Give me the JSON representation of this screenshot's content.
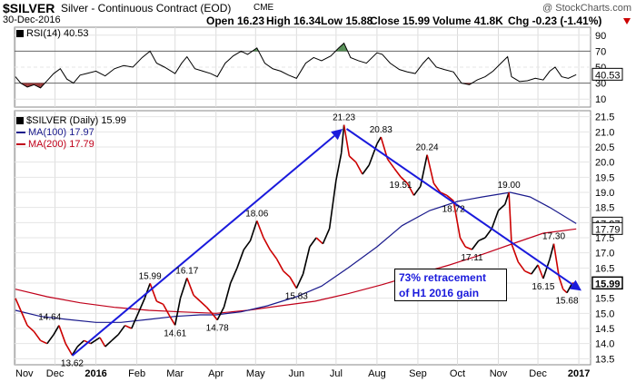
{
  "header": {
    "symbol": "$SILVER",
    "name": "Silver - Continuous Contract (EOD)",
    "exchange": "CME",
    "watermark": "@ StockCharts.com",
    "date": "30-Dec-2016",
    "open": "Open 16.23",
    "high": "High 16.34",
    "low": "Low 15.88",
    "close": "Close 15.99",
    "volume": "Volume 41.8K",
    "chg": "Chg -0.23 (-1.41%)",
    "chg_icon": "arrow-down-icon"
  },
  "colors": {
    "price": "#000000",
    "price_down": "#cc0000",
    "ma100": "#1a1a8c",
    "ma200": "#c0001a",
    "rsi_fill_overbought": "#3a7d3a",
    "rsi_fill_oversold": "#8b1a1a",
    "trend_arrow": "#1a1adc",
    "annotation_text": "#1a1adc"
  },
  "rsi_panel": {
    "label": "RSI(14) 40.53",
    "current_label": "40.53",
    "y_ticks": [
      "90",
      "70",
      "50",
      "30",
      "10"
    ]
  },
  "price_panel": {
    "legend": [
      {
        "label": "$SILVER (Daily) 15.99",
        "color": "#000000"
      },
      {
        "label": "MA(100) 17.97",
        "color": "#1a1a8c"
      },
      {
        "label": "MA(200) 17.79",
        "color": "#c0001a"
      }
    ],
    "y_ticks": [
      "21.5",
      "21.0",
      "20.5",
      "20.0",
      "19.5",
      "19.0",
      "18.5",
      "18.0",
      "17.5",
      "17.0",
      "16.5",
      "16.0",
      "15.5",
      "15.0",
      "14.5",
      "14.0",
      "13.5"
    ],
    "price_tags": [
      {
        "label": "17.97",
        "value": 17.97,
        "style": "outline"
      },
      {
        "label": "17.79",
        "value": 17.79,
        "style": "outline"
      },
      {
        "label": "15.99",
        "value": 15.99,
        "style": "filled"
      }
    ],
    "annotation": {
      "line1": "73% retracement",
      "line2": "of H1 2016 gain"
    }
  },
  "chart_data": {
    "type": "line",
    "x_labels": [
      "Nov",
      "Dec",
      "2016",
      "Feb",
      "Mar",
      "Apr",
      "May",
      "Jun",
      "Jul",
      "Aug",
      "Sep",
      "Oct",
      "Nov",
      "Dec",
      "2017"
    ],
    "ylim": [
      13.3,
      21.7
    ],
    "grid": true,
    "legend_position": "top-left",
    "series": [
      {
        "name": "$SILVER (Daily)",
        "points": [
          [
            "2015-11-01",
            15.5
          ],
          [
            "2015-11-05",
            15.1
          ],
          [
            "2015-11-10",
            14.6
          ],
          [
            "2015-11-15",
            14.4
          ],
          [
            "2015-11-20",
            14.1
          ],
          [
            "2015-11-25",
            14.0
          ],
          [
            "2015-11-30",
            14.3
          ],
          [
            "2015-12-04",
            14.6
          ],
          [
            "2015-12-09",
            14.0
          ],
          [
            "2015-12-14",
            13.62
          ],
          [
            "2015-12-18",
            13.9
          ],
          [
            "2015-12-23",
            14.1
          ],
          [
            "2015-12-28",
            14.0
          ],
          [
            "2016-01-04",
            14.2
          ],
          [
            "2016-01-08",
            13.9
          ],
          [
            "2016-01-13",
            14.1
          ],
          [
            "2016-01-18",
            14.3
          ],
          [
            "2016-01-23",
            14.6
          ],
          [
            "2016-01-28",
            14.5
          ],
          [
            "2016-02-02",
            15.0
          ],
          [
            "2016-02-07",
            15.5
          ],
          [
            "2016-02-11",
            15.99
          ],
          [
            "2016-02-16",
            15.4
          ],
          [
            "2016-02-21",
            15.3
          ],
          [
            "2016-02-26",
            14.9
          ],
          [
            "2016-03-01",
            14.61
          ],
          [
            "2016-03-05",
            15.5
          ],
          [
            "2016-03-10",
            16.17
          ],
          [
            "2016-03-15",
            15.6
          ],
          [
            "2016-03-20",
            15.4
          ],
          [
            "2016-03-25",
            15.2
          ],
          [
            "2016-03-29",
            15.0
          ],
          [
            "2016-04-02",
            14.78
          ],
          [
            "2016-04-07",
            15.2
          ],
          [
            "2016-04-12",
            16.0
          ],
          [
            "2016-04-17",
            16.5
          ],
          [
            "2016-04-22",
            17.1
          ],
          [
            "2016-04-27",
            17.4
          ],
          [
            "2016-05-02",
            18.06
          ],
          [
            "2016-05-07",
            17.5
          ],
          [
            "2016-05-12",
            17.1
          ],
          [
            "2016-05-17",
            16.8
          ],
          [
            "2016-05-22",
            16.4
          ],
          [
            "2016-05-27",
            16.2
          ],
          [
            "2016-06-01",
            15.83
          ],
          [
            "2016-06-06",
            16.3
          ],
          [
            "2016-06-11",
            17.2
          ],
          [
            "2016-06-16",
            17.5
          ],
          [
            "2016-06-21",
            17.3
          ],
          [
            "2016-06-26",
            17.8
          ],
          [
            "2016-07-01",
            19.4
          ],
          [
            "2016-07-05",
            20.3
          ],
          [
            "2016-07-07",
            21.23
          ],
          [
            "2016-07-11",
            20.2
          ],
          [
            "2016-07-16",
            20.0
          ],
          [
            "2016-07-21",
            19.6
          ],
          [
            "2016-07-26",
            19.9
          ],
          [
            "2016-08-01",
            20.6
          ],
          [
            "2016-08-04",
            20.83
          ],
          [
            "2016-08-09",
            20.1
          ],
          [
            "2016-08-14",
            19.8
          ],
          [
            "2016-08-19",
            19.51
          ],
          [
            "2016-08-24",
            19.3
          ],
          [
            "2016-08-29",
            18.9
          ],
          [
            "2016-09-03",
            19.2
          ],
          [
            "2016-09-08",
            20.24
          ],
          [
            "2016-09-13",
            19.3
          ],
          [
            "2016-09-18",
            19.0
          ],
          [
            "2016-09-23",
            18.9
          ],
          [
            "2016-09-28",
            18.72
          ],
          [
            "2016-10-03",
            17.5
          ],
          [
            "2016-10-07",
            17.2
          ],
          [
            "2016-10-12",
            17.11
          ],
          [
            "2016-10-17",
            17.4
          ],
          [
            "2016-10-22",
            17.5
          ],
          [
            "2016-10-27",
            17.8
          ],
          [
            "2016-11-01",
            18.4
          ],
          [
            "2016-11-06",
            18.6
          ],
          [
            "2016-11-09",
            19.0
          ],
          [
            "2016-11-11",
            17.3
          ],
          [
            "2016-11-16",
            16.7
          ],
          [
            "2016-11-21",
            16.4
          ],
          [
            "2016-11-26",
            16.3
          ],
          [
            "2016-12-01",
            16.6
          ],
          [
            "2016-12-05",
            16.15
          ],
          [
            "2016-12-10",
            16.8
          ],
          [
            "2016-12-13",
            17.3
          ],
          [
            "2016-12-17",
            16.2
          ],
          [
            "2016-12-20",
            15.8
          ],
          [
            "2016-12-23",
            15.68
          ],
          [
            "2016-12-27",
            16.0
          ],
          [
            "2016-12-30",
            15.99
          ]
        ]
      },
      {
        "name": "MA(100)",
        "points": [
          [
            "2015-11-01",
            15.1
          ],
          [
            "2015-11-20",
            14.9
          ],
          [
            "2015-12-10",
            14.8
          ],
          [
            "2016-01-01",
            14.7
          ],
          [
            "2016-01-20",
            14.7
          ],
          [
            "2016-02-10",
            14.8
          ],
          [
            "2016-03-01",
            14.9
          ],
          [
            "2016-03-20",
            14.95
          ],
          [
            "2016-04-01",
            14.95
          ],
          [
            "2016-04-20",
            15.05
          ],
          [
            "2016-05-10",
            15.25
          ],
          [
            "2016-06-01",
            15.55
          ],
          [
            "2016-06-20",
            15.9
          ],
          [
            "2016-07-10",
            16.5
          ],
          [
            "2016-08-01",
            17.2
          ],
          [
            "2016-08-20",
            17.9
          ],
          [
            "2016-09-10",
            18.4
          ],
          [
            "2016-10-01",
            18.7
          ],
          [
            "2016-10-20",
            18.85
          ],
          [
            "2016-11-10",
            19.0
          ],
          [
            "2016-11-25",
            18.85
          ],
          [
            "2016-12-10",
            18.5
          ],
          [
            "2016-12-30",
            17.97
          ]
        ]
      },
      {
        "name": "MA(200)",
        "points": [
          [
            "2015-11-01",
            15.8
          ],
          [
            "2015-11-25",
            15.55
          ],
          [
            "2015-12-20",
            15.35
          ],
          [
            "2016-01-15",
            15.2
          ],
          [
            "2016-02-10",
            15.1
          ],
          [
            "2016-03-05",
            15.05
          ],
          [
            "2016-04-01",
            15.0
          ],
          [
            "2016-04-25",
            15.1
          ],
          [
            "2016-05-20",
            15.25
          ],
          [
            "2016-06-15",
            15.4
          ],
          [
            "2016-07-10",
            15.65
          ],
          [
            "2016-08-05",
            15.95
          ],
          [
            "2016-09-01",
            16.3
          ],
          [
            "2016-09-25",
            16.6
          ],
          [
            "2016-10-20",
            16.95
          ],
          [
            "2016-11-15",
            17.35
          ],
          [
            "2016-12-05",
            17.65
          ],
          [
            "2016-12-30",
            17.79
          ]
        ]
      }
    ],
    "rsi": {
      "name": "RSI(14)",
      "ylim": [
        0,
        100
      ],
      "levels": [
        70,
        30
      ],
      "points": [
        [
          "2015-11-01",
          38
        ],
        [
          "2015-11-05",
          30
        ],
        [
          "2015-11-10",
          25
        ],
        [
          "2015-11-15",
          28
        ],
        [
          "2015-11-20",
          24
        ],
        [
          "2015-11-25",
          33
        ],
        [
          "2015-11-30",
          42
        ],
        [
          "2015-12-05",
          48
        ],
        [
          "2015-12-10",
          35
        ],
        [
          "2015-12-15",
          30
        ],
        [
          "2015-12-20",
          40
        ],
        [
          "2015-12-25",
          42
        ],
        [
          "2016-01-01",
          45
        ],
        [
          "2016-01-08",
          39
        ],
        [
          "2016-01-15",
          48
        ],
        [
          "2016-01-22",
          52
        ],
        [
          "2016-01-29",
          50
        ],
        [
          "2016-02-05",
          62
        ],
        [
          "2016-02-11",
          70
        ],
        [
          "2016-02-16",
          55
        ],
        [
          "2016-02-22",
          50
        ],
        [
          "2016-03-01",
          42
        ],
        [
          "2016-03-06",
          55
        ],
        [
          "2016-03-10",
          63
        ],
        [
          "2016-03-16",
          48
        ],
        [
          "2016-03-22",
          45
        ],
        [
          "2016-03-28",
          42
        ],
        [
          "2016-04-02",
          38
        ],
        [
          "2016-04-08",
          55
        ],
        [
          "2016-04-14",
          64
        ],
        [
          "2016-04-20",
          70
        ],
        [
          "2016-04-25",
          66
        ],
        [
          "2016-05-02",
          74
        ],
        [
          "2016-05-08",
          55
        ],
        [
          "2016-05-14",
          48
        ],
        [
          "2016-05-20",
          45
        ],
        [
          "2016-05-26",
          40
        ],
        [
          "2016-06-01",
          36
        ],
        [
          "2016-06-08",
          55
        ],
        [
          "2016-06-14",
          62
        ],
        [
          "2016-06-20",
          58
        ],
        [
          "2016-06-27",
          64
        ],
        [
          "2016-07-03",
          74
        ],
        [
          "2016-07-07",
          80
        ],
        [
          "2016-07-12",
          62
        ],
        [
          "2016-07-18",
          58
        ],
        [
          "2016-07-24",
          55
        ],
        [
          "2016-08-01",
          68
        ],
        [
          "2016-08-05",
          66
        ],
        [
          "2016-08-11",
          55
        ],
        [
          "2016-08-18",
          47
        ],
        [
          "2016-08-24",
          44
        ],
        [
          "2016-08-30",
          42
        ],
        [
          "2016-09-05",
          55
        ],
        [
          "2016-09-09",
          62
        ],
        [
          "2016-09-15",
          50
        ],
        [
          "2016-09-21",
          47
        ],
        [
          "2016-09-28",
          44
        ],
        [
          "2016-10-04",
          30
        ],
        [
          "2016-10-10",
          28
        ],
        [
          "2016-10-16",
          34
        ],
        [
          "2016-10-22",
          38
        ],
        [
          "2016-10-28",
          45
        ],
        [
          "2016-11-03",
          55
        ],
        [
          "2016-11-08",
          63
        ],
        [
          "2016-11-11",
          38
        ],
        [
          "2016-11-17",
          32
        ],
        [
          "2016-11-23",
          33
        ],
        [
          "2016-11-29",
          36
        ],
        [
          "2016-12-05",
          34
        ],
        [
          "2016-12-10",
          45
        ],
        [
          "2016-12-14",
          50
        ],
        [
          "2016-12-19",
          38
        ],
        [
          "2016-12-24",
          36
        ],
        [
          "2016-12-30",
          40.53
        ]
      ]
    },
    "annotations": [
      {
        "label": "13.62",
        "x": "2015-12-14",
        "y": 13.62,
        "pos": "below"
      },
      {
        "label": "14.64",
        "x": "2015-11-27",
        "y": 14.64,
        "pos": "above"
      },
      {
        "label": "15.99",
        "x": "2016-02-11",
        "y": 15.99,
        "pos": "above"
      },
      {
        "label": "14.61",
        "x": "2016-03-01",
        "y": 14.61,
        "pos": "below"
      },
      {
        "label": "16.17",
        "x": "2016-03-10",
        "y": 16.17,
        "pos": "above"
      },
      {
        "label": "14.78",
        "x": "2016-04-02",
        "y": 14.78,
        "pos": "below"
      },
      {
        "label": "18.06",
        "x": "2016-05-02",
        "y": 18.06,
        "pos": "above"
      },
      {
        "label": "15.83",
        "x": "2016-06-01",
        "y": 15.83,
        "pos": "below"
      },
      {
        "label": "21.23",
        "x": "2016-07-07",
        "y": 21.23,
        "pos": "above"
      },
      {
        "label": "20.83",
        "x": "2016-08-04",
        "y": 20.83,
        "pos": "above"
      },
      {
        "label": "19.51",
        "x": "2016-08-19",
        "y": 19.51,
        "pos": "below"
      },
      {
        "label": "20.24",
        "x": "2016-09-08",
        "y": 20.24,
        "pos": "above"
      },
      {
        "label": "18.72",
        "x": "2016-09-28",
        "y": 18.72,
        "pos": "below"
      },
      {
        "label": "17.11",
        "x": "2016-10-12",
        "y": 17.11,
        "pos": "below"
      },
      {
        "label": "19.00",
        "x": "2016-11-09",
        "y": 19.0,
        "pos": "above"
      },
      {
        "label": "16.15",
        "x": "2016-12-05",
        "y": 16.15,
        "pos": "below"
      },
      {
        "label": "17.30",
        "x": "2016-12-13",
        "y": 17.3,
        "pos": "above"
      },
      {
        "label": "15.68",
        "x": "2016-12-23",
        "y": 15.68,
        "pos": "below"
      }
    ],
    "trend_arrows": [
      {
        "from": [
          "2015-12-14",
          13.6
        ],
        "to": [
          "2016-07-06",
          21.1
        ]
      },
      {
        "from": [
          "2016-07-09",
          21.1
        ],
        "to": [
          "2017-01-03",
          15.75
        ]
      }
    ]
  }
}
